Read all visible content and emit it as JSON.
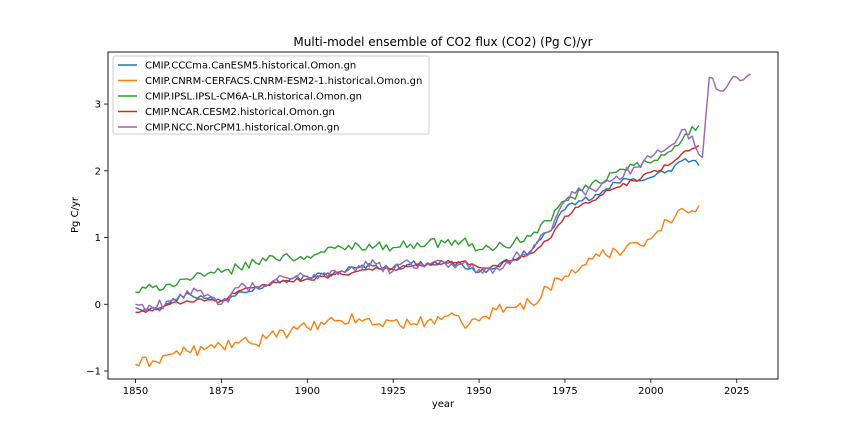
{
  "chart_data": {
    "type": "line",
    "title": "Multi-model ensemble of CO2 flux (CO2) (Pg C)/yr",
    "xlabel": "year",
    "ylabel": "Pg C/yr",
    "xlim": [
      1842,
      2037
    ],
    "ylim": [
      -1.12,
      3.78
    ],
    "xticks": [
      1850,
      1875,
      1900,
      1925,
      1950,
      1975,
      2000,
      2025
    ],
    "yticks": [
      -1,
      0,
      1,
      2,
      3
    ],
    "grid": false,
    "legend_position": "top-left",
    "series": [
      {
        "name": "CMIP.CCCma.CanESM5.historical.Omon.gn",
        "color": "#1f77b4",
        "points": [
          [
            1850,
            -0.05
          ],
          [
            1855,
            -0.05
          ],
          [
            1860,
            0.02
          ],
          [
            1865,
            0.17
          ],
          [
            1870,
            0.09
          ],
          [
            1875,
            0.05
          ],
          [
            1880,
            0.18
          ],
          [
            1885,
            0.26
          ],
          [
            1890,
            0.34
          ],
          [
            1895,
            0.37
          ],
          [
            1900,
            0.41
          ],
          [
            1905,
            0.44
          ],
          [
            1910,
            0.5
          ],
          [
            1915,
            0.55
          ],
          [
            1920,
            0.58
          ],
          [
            1925,
            0.55
          ],
          [
            1930,
            0.6
          ],
          [
            1935,
            0.62
          ],
          [
            1940,
            0.62
          ],
          [
            1945,
            0.6
          ],
          [
            1950,
            0.48
          ],
          [
            1955,
            0.55
          ],
          [
            1960,
            0.68
          ],
          [
            1965,
            0.8
          ],
          [
            1970,
            1.08
          ],
          [
            1975,
            1.42
          ],
          [
            1980,
            1.55
          ],
          [
            1985,
            1.64
          ],
          [
            1990,
            1.82
          ],
          [
            1995,
            1.88
          ],
          [
            2000,
            1.9
          ],
          [
            2005,
            2.0
          ],
          [
            2010,
            2.18
          ],
          [
            2014,
            2.08
          ]
        ]
      },
      {
        "name": "CMIP.CNRM-CERFACS.CNRM-ESM2-1.historical.Omon.gn",
        "color": "#ff7f0e",
        "points": [
          [
            1850,
            -0.9
          ],
          [
            1855,
            -0.85
          ],
          [
            1860,
            -0.75
          ],
          [
            1865,
            -0.7
          ],
          [
            1870,
            -0.68
          ],
          [
            1875,
            -0.62
          ],
          [
            1880,
            -0.58
          ],
          [
            1885,
            -0.6
          ],
          [
            1890,
            -0.4
          ],
          [
            1895,
            -0.42
          ],
          [
            1900,
            -0.35
          ],
          [
            1905,
            -0.3
          ],
          [
            1910,
            -0.25
          ],
          [
            1915,
            -0.22
          ],
          [
            1920,
            -0.3
          ],
          [
            1925,
            -0.25
          ],
          [
            1930,
            -0.3
          ],
          [
            1935,
            -0.25
          ],
          [
            1940,
            -0.18
          ],
          [
            1945,
            -0.28
          ],
          [
            1950,
            -0.25
          ],
          [
            1955,
            -0.08
          ],
          [
            1960,
            -0.05
          ],
          [
            1965,
            0.02
          ],
          [
            1970,
            0.25
          ],
          [
            1975,
            0.42
          ],
          [
            1980,
            0.58
          ],
          [
            1985,
            0.72
          ],
          [
            1990,
            0.8
          ],
          [
            1995,
            0.92
          ],
          [
            2000,
            0.98
          ],
          [
            2005,
            1.25
          ],
          [
            2010,
            1.4
          ],
          [
            2014,
            1.48
          ]
        ]
      },
      {
        "name": "CMIP.IPSL.IPSL-CM6A-LR.historical.Omon.gn",
        "color": "#2ca02c",
        "points": [
          [
            1850,
            0.18
          ],
          [
            1855,
            0.25
          ],
          [
            1860,
            0.3
          ],
          [
            1865,
            0.38
          ],
          [
            1870,
            0.42
          ],
          [
            1875,
            0.48
          ],
          [
            1880,
            0.55
          ],
          [
            1885,
            0.62
          ],
          [
            1890,
            0.72
          ],
          [
            1895,
            0.7
          ],
          [
            1900,
            0.72
          ],
          [
            1905,
            0.78
          ],
          [
            1910,
            0.85
          ],
          [
            1915,
            0.88
          ],
          [
            1920,
            0.88
          ],
          [
            1925,
            0.85
          ],
          [
            1930,
            0.9
          ],
          [
            1935,
            0.92
          ],
          [
            1940,
            0.92
          ],
          [
            1945,
            0.95
          ],
          [
            1950,
            0.82
          ],
          [
            1955,
            0.85
          ],
          [
            1960,
            0.92
          ],
          [
            1965,
            1.02
          ],
          [
            1970,
            1.25
          ],
          [
            1975,
            1.55
          ],
          [
            1980,
            1.7
          ],
          [
            1985,
            1.82
          ],
          [
            1990,
            1.98
          ],
          [
            1995,
            2.08
          ],
          [
            2000,
            2.12
          ],
          [
            2005,
            2.28
          ],
          [
            2010,
            2.55
          ],
          [
            2014,
            2.68
          ]
        ]
      },
      {
        "name": "CMIP.NCAR.CESM2.historical.Omon.gn",
        "color": "#d62728",
        "points": [
          [
            1850,
            -0.12
          ],
          [
            1855,
            -0.1
          ],
          [
            1860,
            0.0
          ],
          [
            1865,
            0.05
          ],
          [
            1870,
            0.05
          ],
          [
            1875,
            0.05
          ],
          [
            1880,
            0.2
          ],
          [
            1885,
            0.26
          ],
          [
            1890,
            0.33
          ],
          [
            1895,
            0.34
          ],
          [
            1900,
            0.38
          ],
          [
            1905,
            0.42
          ],
          [
            1910,
            0.45
          ],
          [
            1915,
            0.5
          ],
          [
            1920,
            0.55
          ],
          [
            1925,
            0.52
          ],
          [
            1930,
            0.57
          ],
          [
            1935,
            0.6
          ],
          [
            1940,
            0.62
          ],
          [
            1945,
            0.64
          ],
          [
            1950,
            0.55
          ],
          [
            1955,
            0.58
          ],
          [
            1960,
            0.66
          ],
          [
            1965,
            0.76
          ],
          [
            1970,
            0.96
          ],
          [
            1975,
            1.32
          ],
          [
            1980,
            1.5
          ],
          [
            1985,
            1.62
          ],
          [
            1990,
            1.75
          ],
          [
            1995,
            1.85
          ],
          [
            2000,
            1.98
          ],
          [
            2005,
            2.08
          ],
          [
            2010,
            2.3
          ],
          [
            2014,
            2.38
          ]
        ]
      },
      {
        "name": "CMIP.NCC.NorCPM1.historical.Omon.gn",
        "color": "#9467bd",
        "points": [
          [
            1850,
            0.0
          ],
          [
            1855,
            -0.05
          ],
          [
            1860,
            0.05
          ],
          [
            1865,
            0.2
          ],
          [
            1870,
            0.12
          ],
          [
            1875,
            0.0
          ],
          [
            1880,
            0.25
          ],
          [
            1885,
            0.25
          ],
          [
            1890,
            0.35
          ],
          [
            1895,
            0.38
          ],
          [
            1900,
            0.42
          ],
          [
            1905,
            0.47
          ],
          [
            1910,
            0.5
          ],
          [
            1915,
            0.58
          ],
          [
            1920,
            0.6
          ],
          [
            1925,
            0.5
          ],
          [
            1930,
            0.62
          ],
          [
            1935,
            0.6
          ],
          [
            1940,
            0.62
          ],
          [
            1945,
            0.6
          ],
          [
            1950,
            0.52
          ],
          [
            1955,
            0.55
          ],
          [
            1960,
            0.7
          ],
          [
            1965,
            0.78
          ],
          [
            1970,
            1.08
          ],
          [
            1975,
            1.55
          ],
          [
            1980,
            1.7
          ],
          [
            1985,
            1.75
          ],
          [
            1990,
            1.92
          ],
          [
            1995,
            2.05
          ],
          [
            2000,
            2.2
          ],
          [
            2005,
            2.35
          ],
          [
            2010,
            2.62
          ],
          [
            2015,
            2.2
          ],
          [
            2017,
            3.4
          ],
          [
            2020,
            3.2
          ],
          [
            2025,
            3.4
          ],
          [
            2029,
            3.45
          ]
        ]
      }
    ]
  }
}
